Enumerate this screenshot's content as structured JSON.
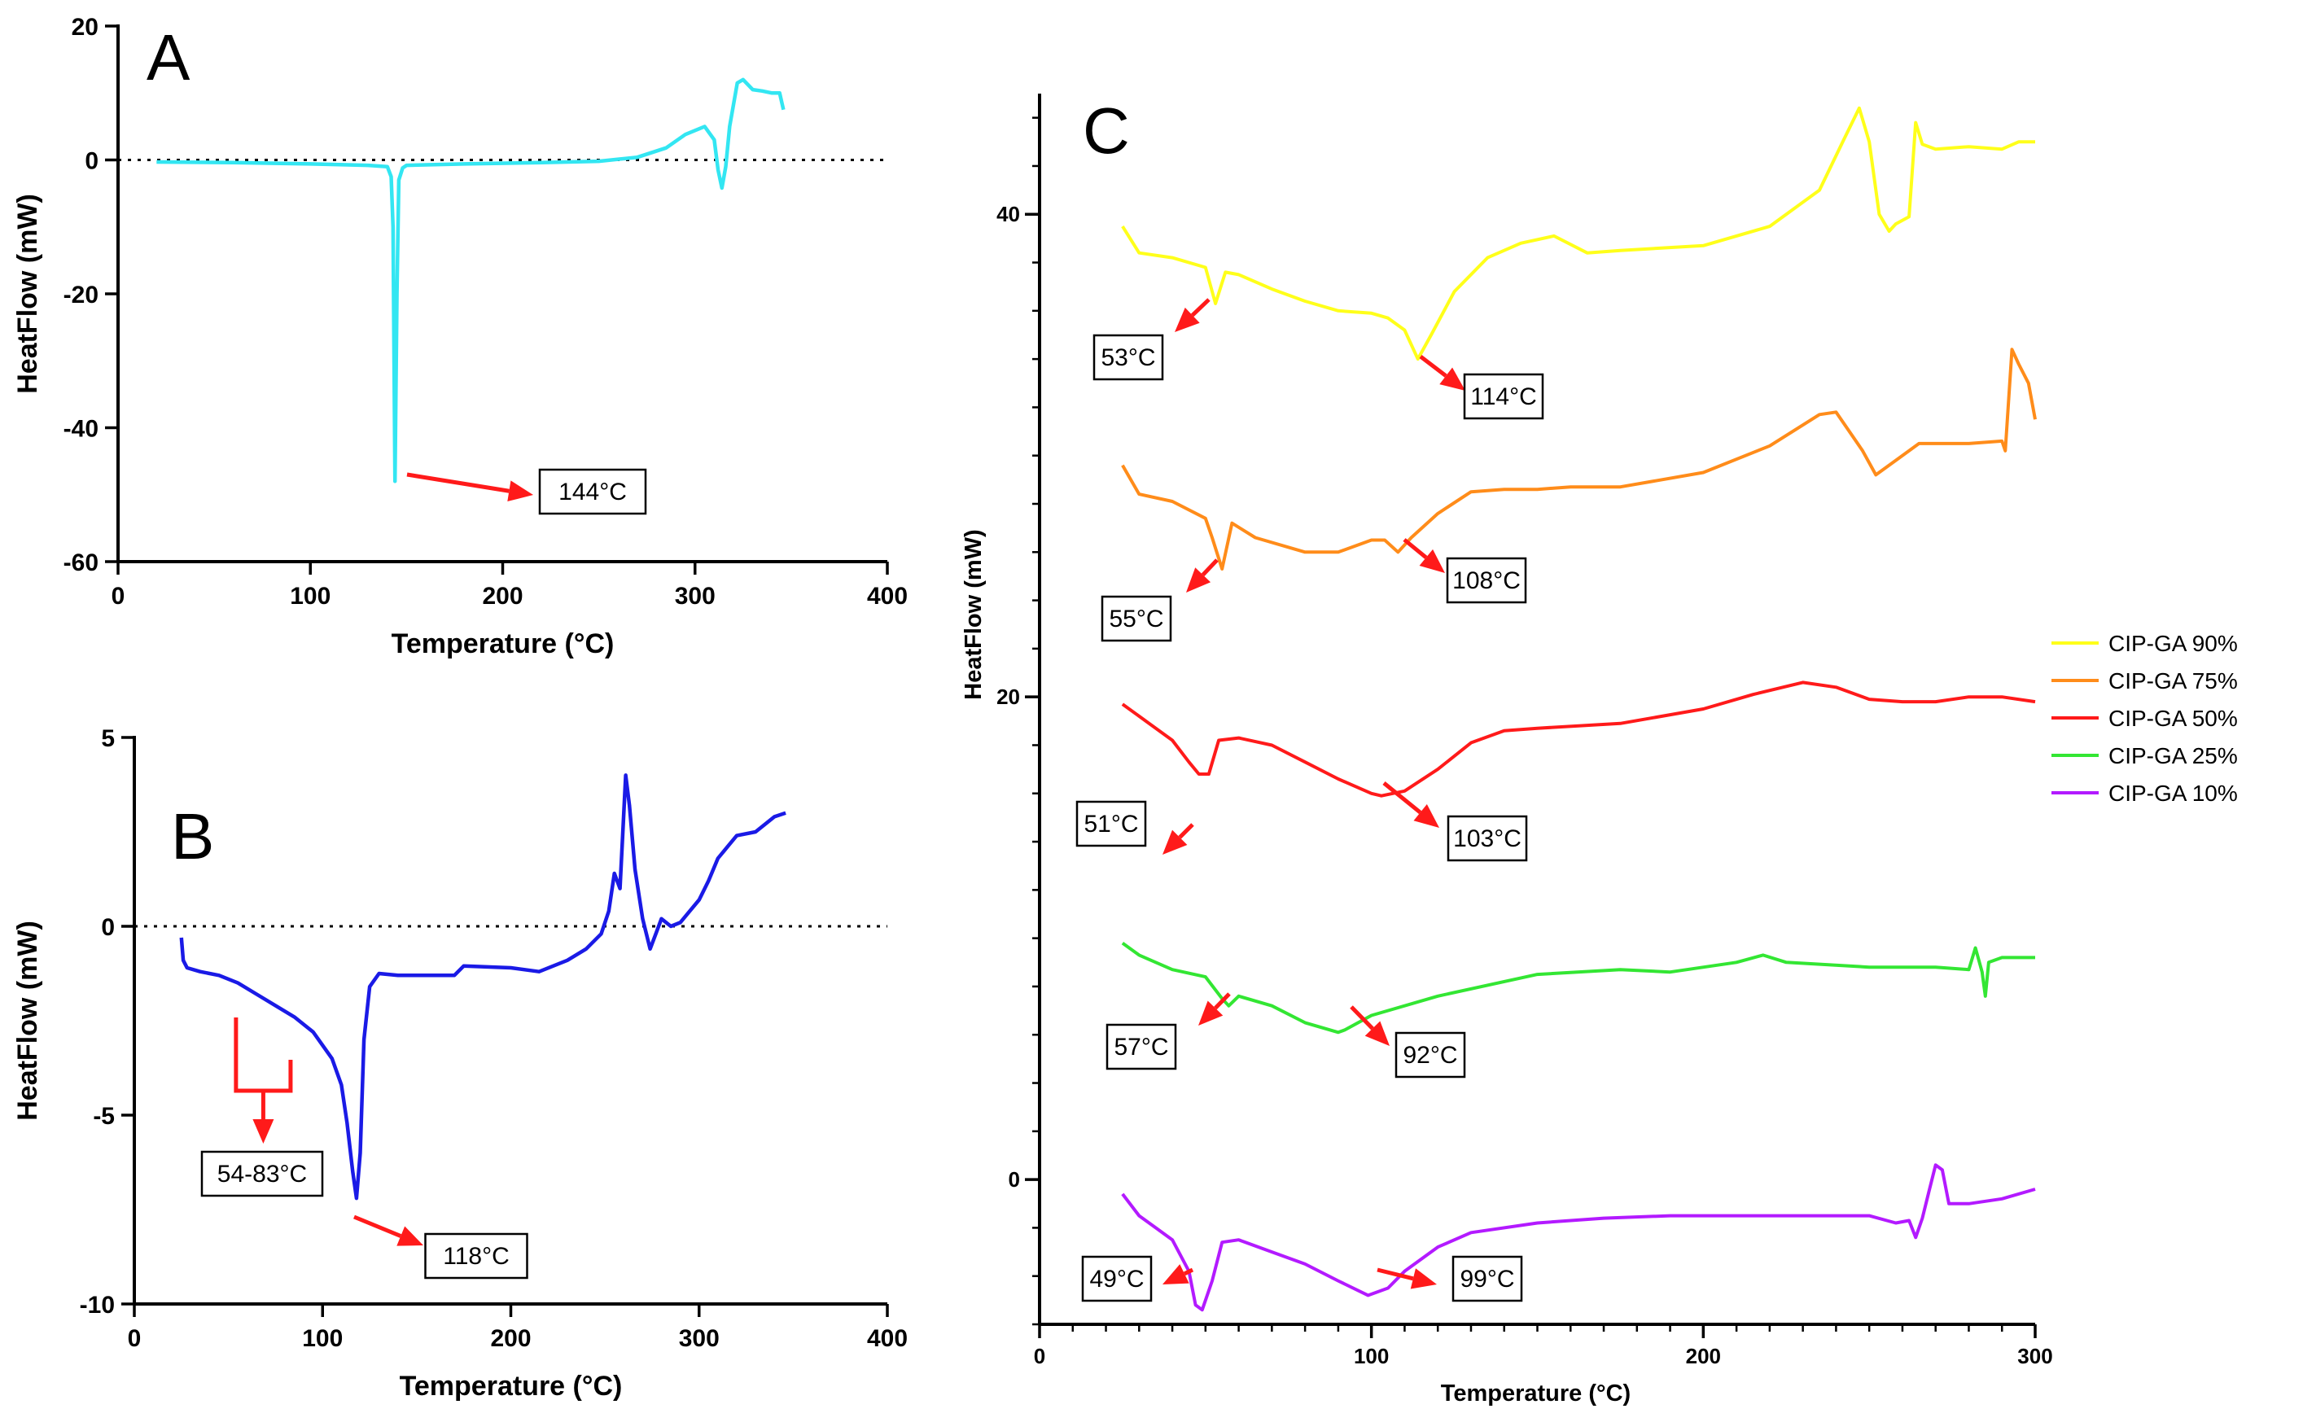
{
  "chart_data": [
    {
      "panel": "A",
      "type": "line",
      "xlabel": "Temperature (°C)",
      "ylabel": "HeatFlow (mW)",
      "xlim": [
        0,
        400
      ],
      "ylim": [
        -60,
        20
      ],
      "xticks": [
        0,
        100,
        200,
        300,
        400
      ],
      "yticks": [
        -60,
        -40,
        -20,
        0,
        20
      ],
      "reference_line": 0,
      "series": [
        {
          "color": "#33e6f2",
          "x": [
            20,
            60,
            100,
            130,
            140,
            142,
            143,
            144,
            145,
            146,
            148,
            150,
            180,
            220,
            250,
            270,
            285,
            295,
            305,
            310,
            312,
            314,
            316,
            318,
            322,
            325,
            330,
            335,
            340,
            344,
            346
          ],
          "y": [
            -0.3,
            -0.4,
            -0.6,
            -0.8,
            -1.0,
            -2.5,
            -10,
            -48,
            -20,
            -3,
            -1.2,
            -0.8,
            -0.6,
            -0.4,
            -0.2,
            0.4,
            1.8,
            3.8,
            5.0,
            3.0,
            -1.5,
            -4.2,
            -1.0,
            5.0,
            11.5,
            12.0,
            10.5,
            10.3,
            10.0,
            10.0,
            7.5
          ]
        }
      ],
      "annotations": [
        {
          "text": "144°C",
          "x": 144,
          "y": -48
        }
      ]
    },
    {
      "panel": "B",
      "type": "line",
      "xlabel": "Temperature (°C)",
      "ylabel": "HeatFlow (mW)",
      "xlim": [
        0,
        400
      ],
      "ylim": [
        -10,
        5
      ],
      "xticks": [
        0,
        100,
        200,
        300,
        400
      ],
      "yticks": [
        -10,
        -5,
        0,
        5
      ],
      "reference_line": 0,
      "series": [
        {
          "color": "#1a1ae6",
          "x": [
            25,
            26,
            28,
            35,
            45,
            55,
            65,
            75,
            85,
            95,
            105,
            110,
            113,
            116,
            118,
            120,
            122,
            125,
            130,
            140,
            170,
            175,
            200,
            215,
            230,
            240,
            248,
            252,
            255,
            258,
            261,
            263,
            266,
            270,
            274,
            277,
            280,
            285,
            290,
            295,
            300,
            305,
            310,
            315,
            320,
            330,
            340,
            346
          ],
          "y": [
            -0.3,
            -0.9,
            -1.1,
            -1.2,
            -1.3,
            -1.5,
            -1.8,
            -2.1,
            -2.4,
            -2.8,
            -3.5,
            -4.2,
            -5.2,
            -6.5,
            -7.2,
            -6.0,
            -3.0,
            -1.6,
            -1.25,
            -1.3,
            -1.3,
            -1.05,
            -1.1,
            -1.2,
            -0.9,
            -0.6,
            -0.2,
            0.4,
            1.4,
            1.0,
            4.0,
            3.2,
            1.5,
            0.2,
            -0.6,
            -0.2,
            0.2,
            0.0,
            0.1,
            0.4,
            0.7,
            1.2,
            1.8,
            2.1,
            2.4,
            2.5,
            2.9,
            3.0
          ]
        }
      ],
      "annotations": [
        {
          "text": "54-83°C",
          "x_range": [
            54,
            83
          ]
        },
        {
          "text": "118°C",
          "x": 118,
          "y": -7.2
        }
      ]
    },
    {
      "panel": "C",
      "type": "line",
      "xlabel": "Temperature (°C)",
      "ylabel": "HeatFlow (mW)",
      "xlim": [
        0,
        300
      ],
      "ylim": [
        -6,
        45
      ],
      "xticks": [
        0,
        100,
        200,
        300
      ],
      "yticks": [
        0,
        20,
        40
      ],
      "series": [
        {
          "name": "CIP-GA 90%",
          "color": "#ffff1a",
          "x": [
            25,
            30,
            40,
            50,
            53,
            56,
            60,
            70,
            80,
            90,
            100,
            105,
            110,
            114,
            118,
            125,
            135,
            145,
            155,
            165,
            175,
            200,
            220,
            235,
            242,
            247,
            250,
            253,
            256,
            258,
            262,
            264,
            266,
            270,
            280,
            290,
            295,
            300
          ],
          "y": [
            39.5,
            38.4,
            38.2,
            37.8,
            36.3,
            37.6,
            37.5,
            36.9,
            36.4,
            36.0,
            35.9,
            35.7,
            35.2,
            34.0,
            35.0,
            36.8,
            38.2,
            38.8,
            39.1,
            38.4,
            38.5,
            38.7,
            39.5,
            41.0,
            43.0,
            44.4,
            43.0,
            40.0,
            39.3,
            39.6,
            39.9,
            43.8,
            42.9,
            42.7,
            42.8,
            42.7,
            43.0,
            43.0
          ]
        },
        {
          "name": "CIP-GA 75%",
          "color": "#ff8c1a",
          "x": [
            25,
            30,
            40,
            50,
            52,
            55,
            58,
            65,
            80,
            90,
            100,
            104,
            108,
            112,
            120,
            130,
            140,
            150,
            160,
            175,
            200,
            220,
            235,
            240,
            248,
            252,
            258,
            265,
            280,
            290,
            291,
            293,
            295,
            298,
            300
          ],
          "y": [
            29.6,
            28.4,
            28.1,
            27.4,
            26.6,
            25.3,
            27.2,
            26.6,
            26.0,
            26.0,
            26.5,
            26.5,
            26.0,
            26.6,
            27.6,
            28.5,
            28.6,
            28.6,
            28.7,
            28.7,
            29.3,
            30.4,
            31.7,
            31.8,
            30.2,
            29.2,
            29.8,
            30.5,
            30.5,
            30.6,
            30.2,
            34.4,
            33.8,
            33.0,
            31.5
          ]
        },
        {
          "name": "CIP-GA 50%",
          "color": "#ff1a1a",
          "x": [
            25,
            30,
            40,
            45,
            48,
            51,
            54,
            60,
            70,
            80,
            90,
            100,
            103,
            110,
            120,
            130,
            140,
            150,
            175,
            200,
            215,
            230,
            240,
            250,
            260,
            270,
            280,
            290,
            300
          ],
          "y": [
            19.7,
            19.2,
            18.2,
            17.3,
            16.8,
            16.8,
            18.2,
            18.3,
            18.0,
            17.3,
            16.6,
            16.0,
            15.9,
            16.1,
            17.0,
            18.1,
            18.6,
            18.7,
            18.9,
            19.5,
            20.1,
            20.6,
            20.4,
            19.9,
            19.8,
            19.8,
            20.0,
            20.0,
            19.8
          ]
        },
        {
          "name": "CIP-GA 25%",
          "color": "#33e633",
          "x": [
            25,
            30,
            40,
            50,
            55,
            57,
            60,
            70,
            80,
            90,
            92,
            100,
            120,
            150,
            175,
            190,
            210,
            218,
            225,
            250,
            270,
            280,
            282,
            284,
            285,
            286,
            290,
            300
          ],
          "y": [
            9.8,
            9.3,
            8.7,
            8.4,
            7.5,
            7.2,
            7.6,
            7.2,
            6.5,
            6.1,
            6.2,
            6.8,
            7.6,
            8.5,
            8.7,
            8.6,
            9.0,
            9.3,
            9.0,
            8.8,
            8.8,
            8.7,
            9.6,
            8.6,
            7.6,
            9.0,
            9.2,
            9.2
          ]
        },
        {
          "name": "CIP-GA 10%",
          "color": "#b31aff",
          "x": [
            25,
            30,
            35,
            40,
            45,
            47,
            49,
            52,
            55,
            60,
            70,
            80,
            90,
            99,
            105,
            110,
            120,
            130,
            150,
            170,
            190,
            210,
            230,
            250,
            258,
            262,
            264,
            266,
            268,
            270,
            272,
            274,
            280,
            290,
            300
          ],
          "y": [
            -0.6,
            -1.5,
            -2.0,
            -2.5,
            -3.8,
            -5.2,
            -5.4,
            -4.2,
            -2.6,
            -2.5,
            -3.0,
            -3.5,
            -4.2,
            -4.8,
            -4.5,
            -3.8,
            -2.8,
            -2.2,
            -1.8,
            -1.6,
            -1.5,
            -1.5,
            -1.5,
            -1.5,
            -1.8,
            -1.7,
            -2.4,
            -1.6,
            -0.5,
            0.6,
            0.4,
            -1.0,
            -1.0,
            -0.8,
            -0.4
          ]
        }
      ],
      "annotations": [
        {
          "text": "53°C",
          "x": 53,
          "series": "CIP-GA 90%"
        },
        {
          "text": "114°C",
          "x": 114,
          "series": "CIP-GA 90%"
        },
        {
          "text": "55°C",
          "x": 55,
          "series": "CIP-GA 75%"
        },
        {
          "text": "108°C",
          "x": 108,
          "series": "CIP-GA 75%"
        },
        {
          "text": "51°C",
          "x": 51,
          "series": "CIP-GA 50%"
        },
        {
          "text": "103°C",
          "x": 103,
          "series": "CIP-GA 50%"
        },
        {
          "text": "57°C",
          "x": 57,
          "series": "CIP-GA 25%"
        },
        {
          "text": "92°C",
          "x": 92,
          "series": "CIP-GA 25%"
        },
        {
          "text": "49°C",
          "x": 49,
          "series": "CIP-GA 10%"
        },
        {
          "text": "99°C",
          "x": 99,
          "series": "CIP-GA 10%"
        }
      ],
      "legend": {
        "placement": "right",
        "entries": [
          "CIP-GA 90%",
          "CIP-GA 75%",
          "CIP-GA 50%",
          "CIP-GA 25%",
          "CIP-GA 10%"
        ]
      }
    }
  ]
}
